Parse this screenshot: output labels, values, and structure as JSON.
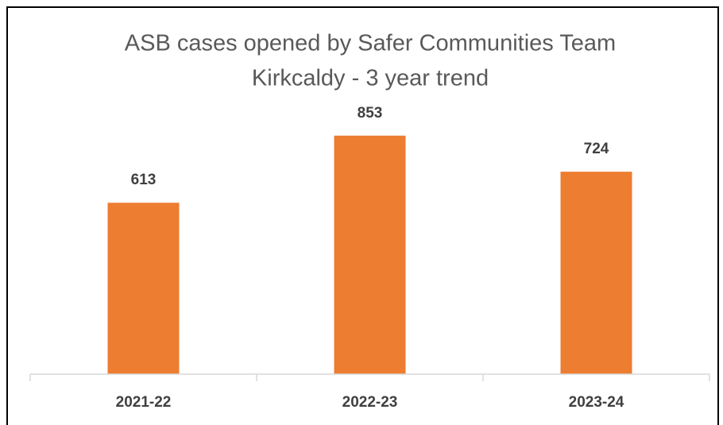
{
  "chart_data": {
    "type": "bar",
    "title": [
      "ASB cases opened by Safer Communities Team",
      "Kirkcaldy - 3 year trend"
    ],
    "categories": [
      "2021-22",
      "2022-23",
      "2023-24"
    ],
    "values": [
      613,
      853,
      724
    ],
    "color": "#ed7d31",
    "ylim": [
      0,
      1000
    ],
    "grid": false
  }
}
